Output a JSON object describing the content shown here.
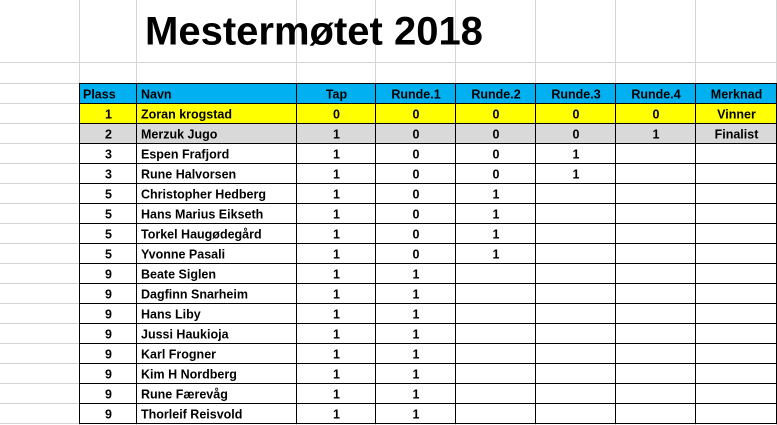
{
  "title": "Mestermøtet 2018",
  "table": {
    "header": [
      "Plass",
      "Navn",
      "Tap",
      "Runde.1",
      "Runde.2",
      "Runde.3",
      "Runde.4",
      "Merknad"
    ],
    "rows": [
      [
        1,
        "Zoran krogstad",
        0,
        0,
        0,
        0,
        0,
        "Vinner"
      ],
      [
        2,
        "Merzuk Jugo",
        1,
        0,
        0,
        0,
        1,
        "Finalist"
      ],
      [
        3,
        "Espen Frafjord",
        1,
        0,
        0,
        1
      ],
      [
        3,
        "Rune Halvorsen",
        1,
        0,
        0,
        1
      ],
      [
        5,
        "Christopher Hedberg",
        1,
        0,
        1
      ],
      [
        5,
        "Hans Marius Eikseth",
        1,
        0,
        1
      ],
      [
        5,
        "Torkel Haugødegård",
        1,
        0,
        1
      ],
      [
        5,
        "Yvonne Pasali",
        1,
        0,
        1
      ],
      [
        9,
        "Beate Siglen",
        1,
        1
      ],
      [
        9,
        "Dagfinn Snarheim",
        1,
        1
      ],
      [
        9,
        "Hans Liby",
        1,
        1
      ],
      [
        9,
        "Jussi Haukioja",
        1,
        1
      ],
      [
        9,
        "Karl Frogner",
        1,
        1
      ],
      [
        9,
        "Kim H Nordberg",
        1,
        1
      ],
      [
        9,
        "Rune Færevåg",
        1,
        1
      ],
      [
        9,
        "Thorleif Reisvold",
        1,
        1
      ]
    ]
  }
}
